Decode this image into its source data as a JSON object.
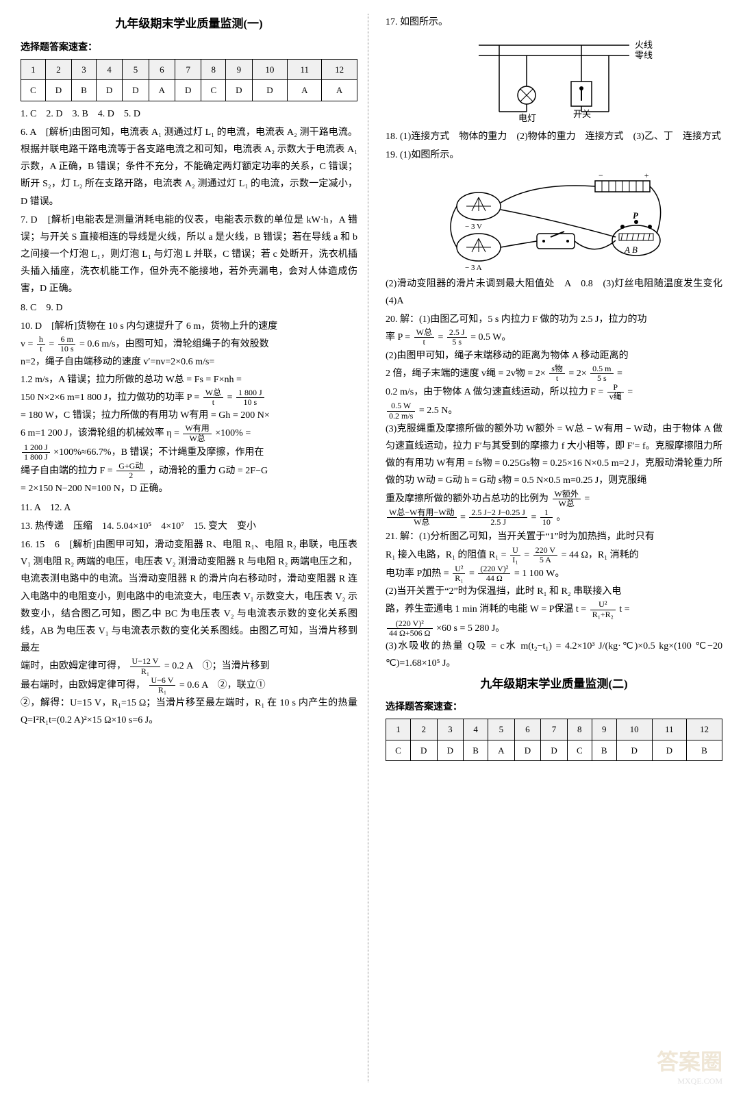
{
  "left": {
    "title": "九年级期末学业质量监测(一)",
    "subhead": "选择题答案速查：",
    "answer_table": {
      "nums": [
        "1",
        "2",
        "3",
        "4",
        "5",
        "6",
        "7",
        "8",
        "9",
        "10",
        "11",
        "12"
      ],
      "vals": [
        "C",
        "D",
        "B",
        "D",
        "D",
        "A",
        "D",
        "C",
        "D",
        "D",
        "A",
        "A"
      ]
    },
    "line_1_5": "1. C　2. D　3. B　4. D　5. D",
    "q6": "6. A　[解析]由图可知，电流表 A₁ 测通过灯 L₁ 的电流，电流表 A₂ 测干路电流。根据并联电路干路电流等于各支路电流之和可知，电流表 A₂ 示数大于电流表 A₁ 示数，A 正确，B 错误；条件不充分，不能确定两灯额定功率的关系，C 错误；断开 S₂，灯 L₂ 所在支路开路，电流表 A₂ 测通过灯 L₁ 的电流，示数一定减小，D 错误。",
    "q7": "7. D　[解析]电能表是测量消耗电能的仪表，电能表示数的单位是 kW·h，A 错误；与开关 S 直接相连的导线是火线，所以 a 是火线，B 错误；若在导线 a 和 b 之间接一个灯泡 L₁，则灯泡 L₁ 与灯泡 L 并联，C 错误；若 c 处断开，洗衣机插头插入插座，洗衣机能工作，但外壳不能接地，若外壳漏电，会对人体造成伤害，D 正确。",
    "q8_9": "8. C　9. D",
    "q10_a": "10. D　[解析]货物在 10 s 内匀速提升了 6 m，货物上升的速度",
    "q10_b": "= 0.6 m/s，由图可知，滑轮组绳子的有效股数",
    "q10_c": "n=2，绳子自由端移动的速度 v′=nv=2×0.6 m/s=",
    "q10_d": "1.2 m/s，A 错误；拉力所做的总功 W总 = Fs = F×nh =",
    "q10_e": "150 N×2×6 m=1 800 J，拉力做功的功率 P =",
    "q10_f": "= 180 W，C 错误；拉力所做的有用功 W有用 = Gh = 200 N×",
    "q10_g": "6 m=1 200 J，该滑轮组的机械效率 η =",
    "q10_h": "×100% =",
    "q10_i": "×100%≈66.7%，B 错误；不计绳重及摩擦，作用在",
    "q10_j": "绳子自由端的拉力 F =",
    "q10_k": "，动滑轮的重力 G动 = 2F−G",
    "q10_l": "= 2×150 N−200 N=100 N，D 正确。",
    "q11_12": "11. A　12. A",
    "q13": "13. 热传递　压缩　14. 5.04×10⁵　4×10⁷　15. 变大　变小",
    "q16_a": "16. 15　6　[解析]由图甲可知，滑动变阻器 R、电阻 R₁、电阻 R₂ 串联，电压表 V₁ 测电阻 R₂ 两端的电压，电压表 V₂ 测滑动变阻器 R 与电阻 R₂ 两端电压之和，电流表测电路中的电流。当滑动变阻器 R 的滑片向右移动时，滑动变阻器 R 连入电路中的电阻变小，则电路中的电流变大，电压表 V₁ 示数变大，电压表 V₂ 示数变小，结合图乙可知，图乙中 BC 为电压表 V₂ 与电流表示数的变化关系图线，AB 为电压表 V₁ 与电流表示数的变化关系图线。由图乙可知，当滑片移到最左",
    "q16_b": "端时，由欧姆定律可得，",
    "q16_c": "= 0.2 A　①；当滑片移到",
    "q16_d": "最右端时，由欧姆定律可得，",
    "q16_e": "= 0.6 A　②，联立①",
    "q16_f": "②，解得：U=15 V，R₁=15 Ω；当滑片移至最左端时，R₁ 在 10 s 内产生的热量 Q=I²R₁t=(0.2 A)²×15 Ω×10 s=6 J。"
  },
  "right": {
    "q17_a": "17. 如图所示。",
    "diag17": {
      "live": "火线",
      "neutral": "零线",
      "lamp": "电灯",
      "switch": "开关"
    },
    "q18": "18. (1)连接方式　物体的重力　(2)物体的重力　连接方式　(3)乙、丁　连接方式",
    "q19_a": "19. (1)如图所示。",
    "q19_b": "(2)滑动变阻器的滑片未调到最大阻值处　A　0.8　(3)灯丝电阻随温度发生变化　(4)A",
    "q20_a": "20. 解：(1)由图乙可知，5 s 内拉力 F 做的功为 2.5 J，拉力的功",
    "q20_b": "率 P =",
    "q20_c": "= 0.5 W。",
    "q20_d": "(2)由图甲可知，绳子末端移动的距离为物体 A 移动距离的",
    "q20_e": "2 倍，绳子末端的速度 v绳 = 2v物 = 2×",
    "q20_f": "= 2×",
    "q20_g": "=",
    "q20_h": "0.2 m/s，由于物体 A 做匀速直线运动，所以拉力 F =",
    "q20_i": "=",
    "q20_j": "= 2.5 N。",
    "q20_k": "(3)克服绳重及摩擦所做的额外功 W额外 = W总 − W有用 − W动，由于物体 A 做匀速直线运动，拉力 F′与其受到的摩擦力 f 大小相等，即 F′= f。克服摩擦阻力所做的有用功 W有用 = fs物 = 0.25Gs物 = 0.25×16 N×0.5 m=2 J，克服动滑轮重力所做的功 W动 = G动 h = G动 s物 = 0.5 N×0.5 m=0.25 J，则克服绳",
    "q20_l": "重及摩擦所做的额外功占总功的比例为",
    "q20_m": "=",
    "q20_n": "=",
    "q20_o": "。",
    "q21_a": "21. 解：(1)分析图乙可知，当开关置于“1”时为加热挡，此时只有",
    "q21_b": "R₁ 接入电路，R₁ 的阻值 R₁ =",
    "q21_c": "= 44 Ω，R₁ 消耗的",
    "q21_d": "电功率 P加热 =",
    "q21_e": "= 1 100 W。",
    "q21_f": "(2)当开关置于“2”时为保温挡，此时 R₁ 和 R₂ 串联接入电",
    "q21_g": "路，养生壶通电 1 min 消耗的电能 W = P保温 t =",
    "q21_h": "t =",
    "q21_i": "×60 s = 5 280 J。",
    "q21_j": "(3)水吸收的热量 Q吸 = c水 m(t₂−t₁) = 4.2×10³ J/(kg·℃)×0.5 kg×(100 ℃−20 ℃)=1.68×10⁵ J。",
    "title2": "九年级期末学业质量监测(二)",
    "subhead2": "选择题答案速查：",
    "answer_table2": {
      "nums": [
        "1",
        "2",
        "3",
        "4",
        "5",
        "6",
        "7",
        "8",
        "9",
        "10",
        "11",
        "12"
      ],
      "vals": [
        "C",
        "D",
        "D",
        "B",
        "A",
        "D",
        "D",
        "C",
        "B",
        "D",
        "D",
        "B"
      ]
    }
  },
  "fractions": {
    "v_h_t": {
      "n": "h",
      "d": "t"
    },
    "v_6_10": {
      "n": "6 m",
      "d": "10 s"
    },
    "P_W_t": {
      "n": "W总",
      "d": "t"
    },
    "P_1800_10": {
      "n": "1 800 J",
      "d": "10 s"
    },
    "eta": {
      "n": "W有用",
      "d": "W总"
    },
    "eta_num": {
      "n": "1 200 J",
      "d": "1 800 J"
    },
    "F_GG_2": {
      "n": "G+G动",
      "d": "2"
    },
    "U12_R1": {
      "n": "U−12 V",
      "d": "R₁"
    },
    "U6_R1": {
      "n": "U−6 V",
      "d": "R₁"
    },
    "P_Wt2": {
      "n": "W总",
      "d": "t"
    },
    "P_25_5": {
      "n": "2.5 J",
      "d": "5 s"
    },
    "s_t": {
      "n": "s物",
      "d": "t"
    },
    "v_05_5": {
      "n": "0.5 m",
      "d": "5 s"
    },
    "P_v": {
      "n": "P",
      "d": "v绳"
    },
    "P05_02": {
      "n": "0.5 W",
      "d": "0.2 m/s"
    },
    "W_W": {
      "n": "W额外",
      "d": "W总"
    },
    "W_expr": {
      "n": "W总−W有用−W动",
      "d": "W总"
    },
    "W_num": {
      "n": "2.5 J−2 J−0.25 J",
      "d": "2.5 J"
    },
    "one_ten": {
      "n": "1",
      "d": "10"
    },
    "U_I": {
      "n": "U",
      "d": "I₁"
    },
    "V_A": {
      "n": "220 V",
      "d": "5 A"
    },
    "U2_R1": {
      "n": "U²",
      "d": "R₁"
    },
    "V2_44": {
      "n": "(220 V)²",
      "d": "44 Ω"
    },
    "U2_R12": {
      "n": "U²",
      "d": "R₁+R₂"
    },
    "V2_550": {
      "n": "(220 V)²",
      "d": "44 Ω+506 Ω"
    }
  },
  "watermark": "答案圈",
  "watermark_sub": "MXQE.COM"
}
